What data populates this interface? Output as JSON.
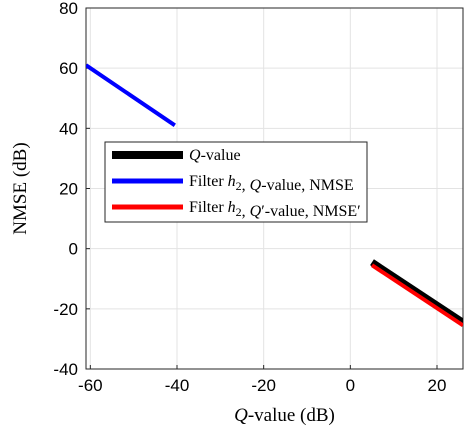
{
  "chart_data": {
    "type": "line",
    "xlabel": {
      "italic": "Q",
      "rest": "-value (dB)"
    },
    "ylabel": "NMSE (dB)",
    "xlim": [
      -61,
      26
    ],
    "ylim": [
      -40,
      80
    ],
    "xticks": [
      -60,
      -40,
      -20,
      0,
      20
    ],
    "yticks": [
      -40,
      -20,
      0,
      20,
      40,
      60,
      80
    ],
    "grid": true,
    "legend_position": "center-left",
    "series": [
      {
        "name": "Q-value",
        "legend_parts": [
          {
            "t": "Q",
            "i": true
          },
          {
            "t": "-value",
            "i": false
          }
        ],
        "color": "#000000",
        "width": 7,
        "x": [
          5,
          26
        ],
        "y": [
          -4.5,
          -24.5
        ]
      },
      {
        "name": "Filter h2, Q-value, NMSE",
        "legend_parts": [
          {
            "t": "Filter ",
            "i": false
          },
          {
            "t": "h",
            "i": true
          },
          {
            "t": "2",
            "i": false,
            "sub": true
          },
          {
            "t": ", ",
            "i": false
          },
          {
            "t": "Q",
            "i": true
          },
          {
            "t": "-value, NMSE",
            "i": false
          }
        ],
        "color": "#0000ff",
        "width": 4,
        "x": [
          -61,
          -40.5
        ],
        "y": [
          61,
          41
        ]
      },
      {
        "name": "Filter h2, Q'-value, NMSE'",
        "legend_parts": [
          {
            "t": "Filter ",
            "i": false
          },
          {
            "t": "h",
            "i": true
          },
          {
            "t": "2",
            "i": false,
            "sub": true
          },
          {
            "t": ", ",
            "i": false
          },
          {
            "t": "Q",
            "i": true
          },
          {
            "t": "′-value, NMSE′",
            "i": false
          }
        ],
        "color": "#ff0000",
        "width": 4,
        "x": [
          5,
          26
        ],
        "y": [
          -5.5,
          -25.5
        ]
      }
    ]
  }
}
